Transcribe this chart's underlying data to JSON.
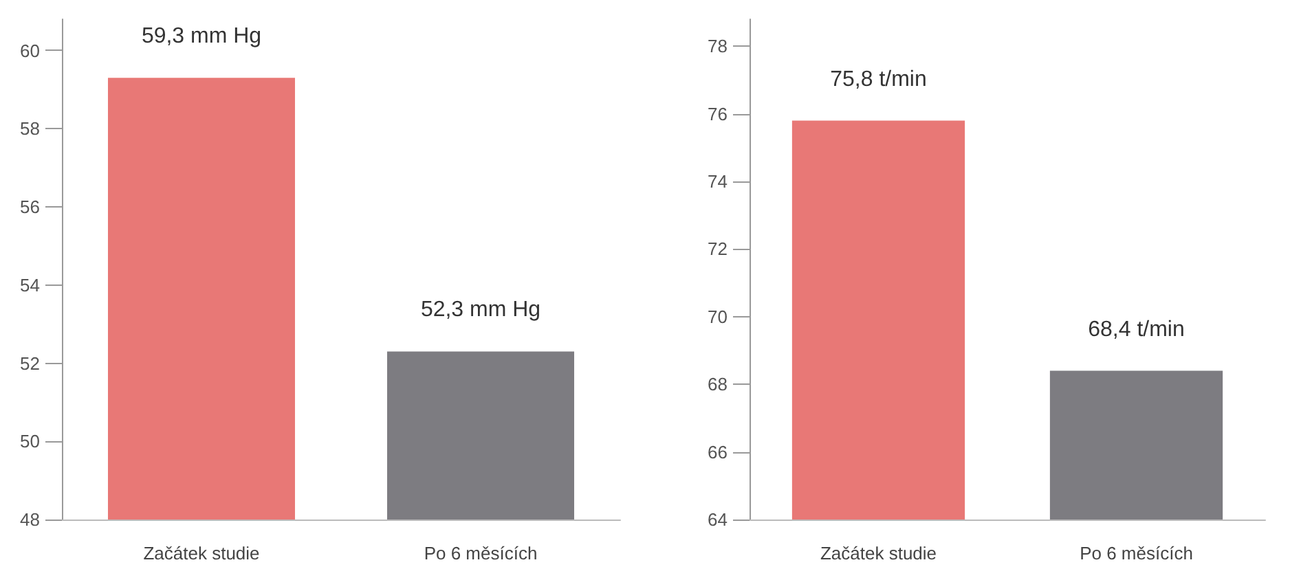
{
  "chart_data": [
    {
      "type": "bar",
      "categories": [
        "Začátek studie",
        "Po 6 měsících"
      ],
      "values": [
        59.3,
        52.3
      ],
      "colors": [
        "#e87876",
        "#7d7c81"
      ],
      "value_labels": [
        "59,3 mm Hg",
        "52,3 mm Hg"
      ],
      "ylim": [
        48,
        60.8
      ],
      "yticks": [
        48,
        50,
        52,
        54,
        56,
        58,
        60
      ],
      "grid": false
    },
    {
      "type": "bar",
      "categories": [
        "Začátek studie",
        "Po 6 měsících"
      ],
      "values": [
        75.8,
        68.4
      ],
      "colors": [
        "#e87876",
        "#7d7c81"
      ],
      "value_labels": [
        "75,8 t/min",
        "68,4 t/min"
      ],
      "ylim": [
        64,
        78.8
      ],
      "yticks": [
        64,
        66,
        68,
        70,
        72,
        74,
        76,
        78
      ],
      "grid": false
    }
  ]
}
